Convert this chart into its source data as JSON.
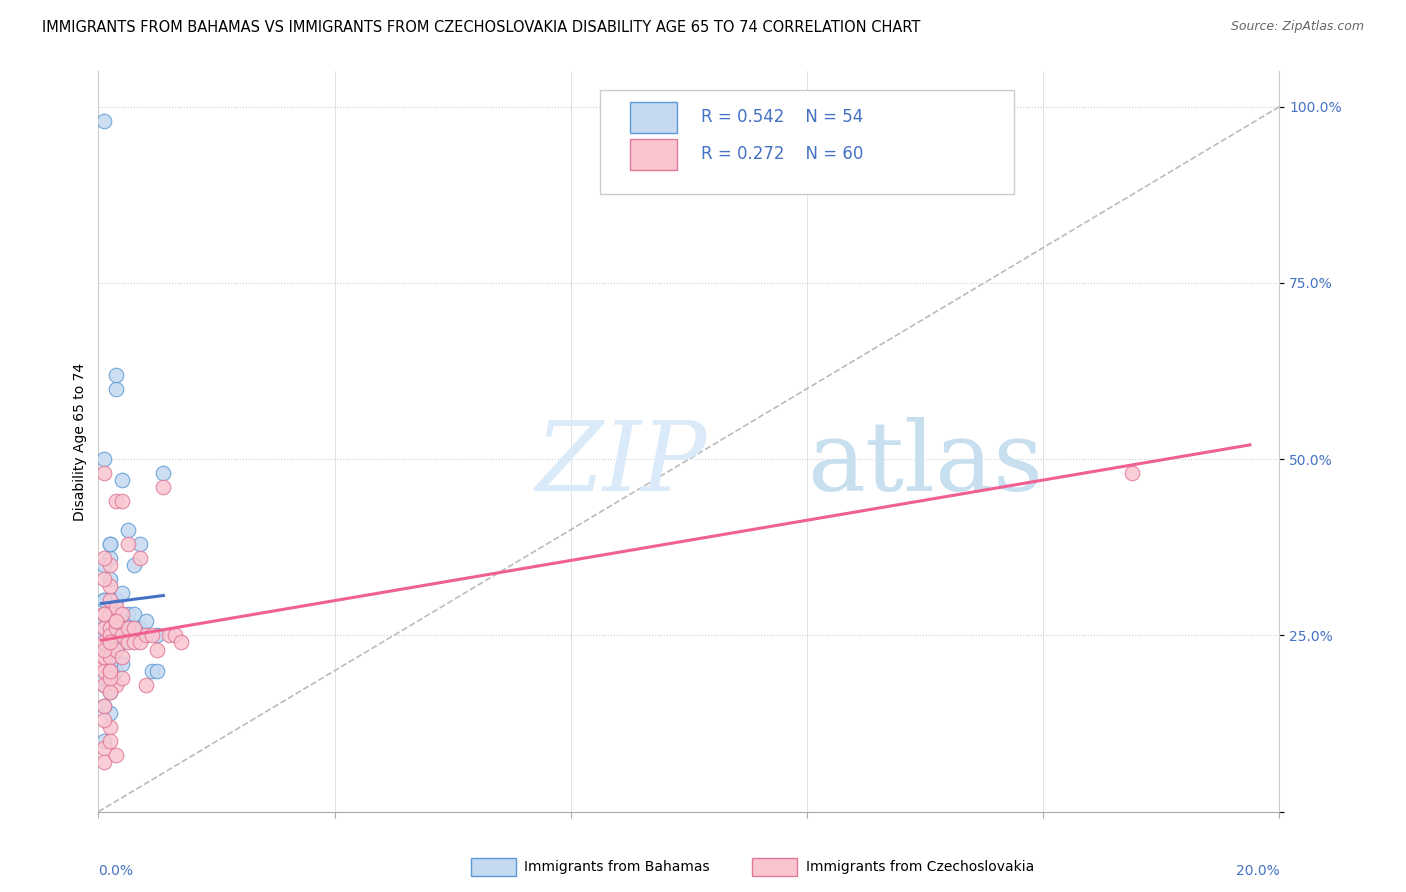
{
  "title": "IMMIGRANTS FROM BAHAMAS VS IMMIGRANTS FROM CZECHOSLOVAKIA DISABILITY AGE 65 TO 74 CORRELATION CHART",
  "source": "Source: ZipAtlas.com",
  "ylabel": "Disability Age 65 to 74",
  "legend1_label": "Immigrants from Bahamas",
  "legend2_label": "Immigrants from Czechoslovakia",
  "R1": 0.542,
  "N1": 54,
  "R2": 0.272,
  "N2": 60,
  "color1_face": "#c5d9f0",
  "color1_edge": "#5b9bd5",
  "color2_face": "#f9c6d0",
  "color2_edge": "#e07898",
  "line1_color": "#4472c4",
  "line2_color": "#f06090",
  "diag_color": "#bbbbbb",
  "watermark_color": "#daeaf8",
  "tick_color": "#4472c4",
  "xlim": [
    0.0,
    0.2
  ],
  "ylim": [
    0.0,
    1.05
  ],
  "yticks": [
    0.0,
    0.25,
    0.5,
    0.75,
    1.0
  ],
  "ytick_labels": [
    "",
    "25.0%",
    "50.0%",
    "75.0%",
    "100.0%"
  ],
  "title_fontsize": 10.5,
  "source_fontsize": 9,
  "axis_label_fontsize": 10,
  "tick_fontsize": 10,
  "legend_fontsize": 12,
  "scatter_size": 110,
  "scatter1_x": [
    0.0005,
    0.001,
    0.001,
    0.001,
    0.001,
    0.001,
    0.001,
    0.002,
    0.002,
    0.002,
    0.002,
    0.002,
    0.002,
    0.002,
    0.003,
    0.003,
    0.003,
    0.003,
    0.003,
    0.004,
    0.004,
    0.004,
    0.004,
    0.005,
    0.005,
    0.005,
    0.006,
    0.006,
    0.006,
    0.007,
    0.007,
    0.008,
    0.009,
    0.01,
    0.01,
    0.011,
    0.001,
    0.002,
    0.001,
    0.002,
    0.001,
    0.003,
    0.002,
    0.004,
    0.003,
    0.001,
    0.002,
    0.001,
    0.001,
    0.002,
    0.001,
    0.001,
    0.001,
    0.001
  ],
  "scatter1_y": [
    0.24,
    0.27,
    0.3,
    0.26,
    0.22,
    0.28,
    0.2,
    0.33,
    0.29,
    0.25,
    0.36,
    0.38,
    0.27,
    0.24,
    0.6,
    0.62,
    0.27,
    0.25,
    0.3,
    0.47,
    0.27,
    0.31,
    0.24,
    0.28,
    0.4,
    0.26,
    0.28,
    0.26,
    0.35,
    0.38,
    0.26,
    0.27,
    0.2,
    0.25,
    0.2,
    0.48,
    0.18,
    0.14,
    0.15,
    0.17,
    0.1,
    0.2,
    0.22,
    0.21,
    0.23,
    0.5,
    0.38,
    0.35,
    0.19,
    0.21,
    0.3,
    0.25,
    0.26,
    0.98
  ],
  "scatter2_x": [
    0.0005,
    0.001,
    0.001,
    0.001,
    0.001,
    0.001,
    0.001,
    0.001,
    0.002,
    0.002,
    0.002,
    0.002,
    0.002,
    0.002,
    0.002,
    0.003,
    0.003,
    0.003,
    0.003,
    0.003,
    0.004,
    0.004,
    0.004,
    0.004,
    0.005,
    0.005,
    0.005,
    0.006,
    0.006,
    0.007,
    0.007,
    0.008,
    0.008,
    0.009,
    0.01,
    0.011,
    0.012,
    0.013,
    0.014,
    0.001,
    0.002,
    0.001,
    0.003,
    0.002,
    0.001,
    0.004,
    0.002,
    0.001,
    0.003,
    0.001,
    0.001,
    0.001,
    0.002,
    0.002,
    0.001,
    0.001,
    0.002,
    0.003,
    0.002,
    0.175
  ],
  "scatter2_y": [
    0.21,
    0.24,
    0.28,
    0.22,
    0.2,
    0.26,
    0.18,
    0.22,
    0.3,
    0.26,
    0.32,
    0.35,
    0.25,
    0.22,
    0.28,
    0.44,
    0.26,
    0.23,
    0.27,
    0.29,
    0.44,
    0.25,
    0.28,
    0.22,
    0.26,
    0.38,
    0.24,
    0.26,
    0.24,
    0.36,
    0.24,
    0.25,
    0.18,
    0.25,
    0.23,
    0.46,
    0.25,
    0.25,
    0.24,
    0.15,
    0.12,
    0.13,
    0.18,
    0.2,
    0.09,
    0.19,
    0.1,
    0.07,
    0.08,
    0.48,
    0.36,
    0.33,
    0.17,
    0.19,
    0.28,
    0.23,
    0.24,
    0.27,
    0.2,
    0.48
  ]
}
